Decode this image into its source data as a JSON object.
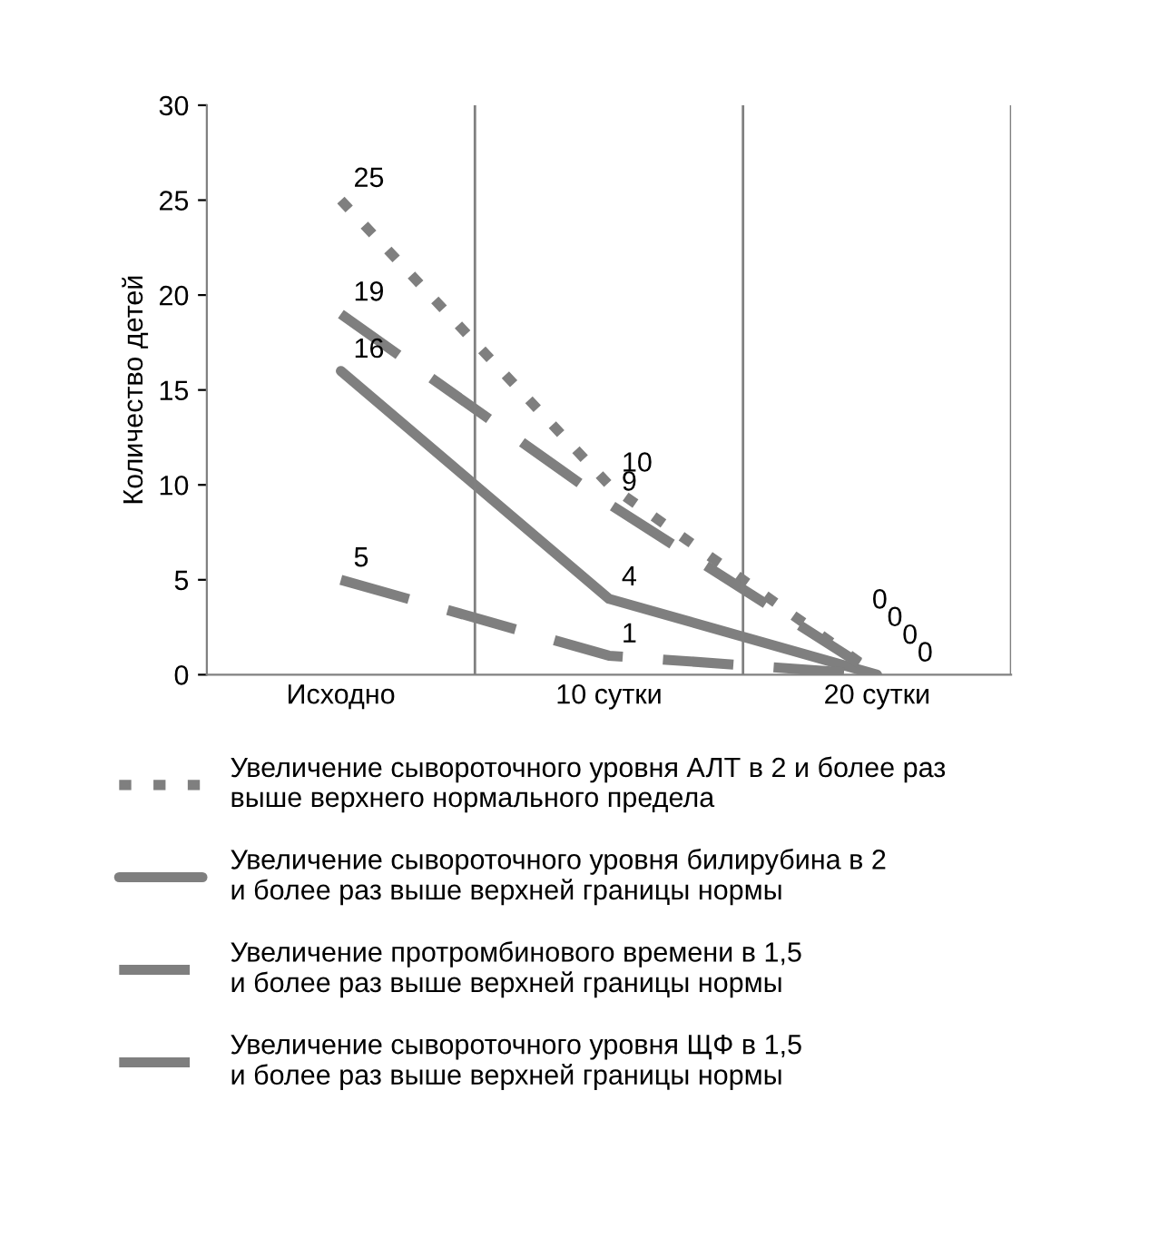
{
  "chart_data": {
    "type": "line",
    "ylabel": "Количество детей",
    "categories": [
      "Исходно",
      "10 сутки",
      "20 сутки"
    ],
    "series": [
      {
        "name": "Увеличение сывороточного уровня АЛТ в 2 и более раз\nвыше верхнего нормального предела",
        "color": "#7f7f7f",
        "line_style": "dotted",
        "values": [
          25,
          10,
          0
        ]
      },
      {
        "name": "Увеличение сывороточного уровня билирубина в 2\nи более раз выше верхней границы нормы",
        "color": "#7f7f7f",
        "line_style": "solid",
        "values": [
          16,
          4,
          0
        ]
      },
      {
        "name": "Увеличение протромбинового времени в 1,5\nи более раз выше верхней границы нормы",
        "color": "#7f7f7f",
        "line_style": "dashed",
        "values": [
          19,
          9,
          0
        ]
      },
      {
        "name": "Увеличение сывороточного уровня ЩФ в 1,5\nи более раз выше верхней границы нормы",
        "color": "#7f7f7f",
        "line_style": "dashed",
        "values": [
          5,
          1,
          0
        ]
      }
    ],
    "ylim": [
      0,
      30
    ],
    "yticks": [
      0,
      5,
      10,
      15,
      20,
      25,
      30
    ],
    "grid": "x",
    "legend": "bottom",
    "data_labels": true
  }
}
